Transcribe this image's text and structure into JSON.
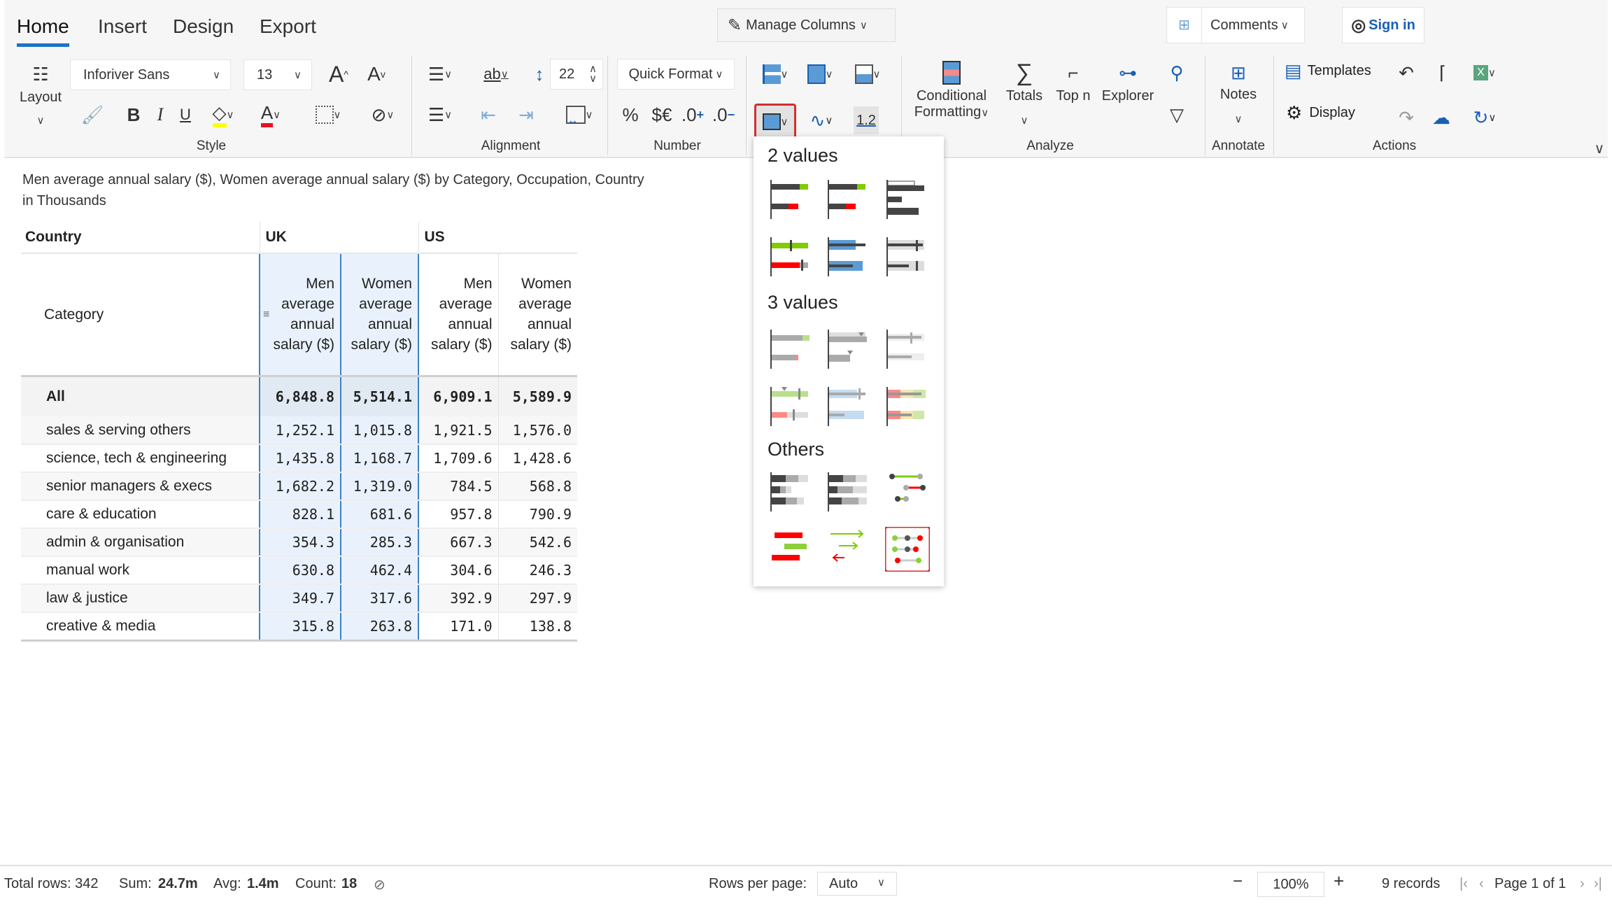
{
  "tabs": [
    {
      "label": "Home",
      "active": true
    },
    {
      "label": "Insert"
    },
    {
      "label": "Design"
    },
    {
      "label": "Export"
    }
  ],
  "header": {
    "manage_columns": "Manage Columns",
    "comments": "Comments",
    "sign_in": "Sign in"
  },
  "ribbon": {
    "layout_label": "Layout",
    "font_family": "Inforiver Sans",
    "font_size": "13",
    "row_height": "22",
    "quick_format": "Quick Format",
    "number_buttons": [
      "%",
      "$€",
      ".0",
      ".0"
    ],
    "decimals_label": "1.2",
    "conditional": "Conditional",
    "formatting": "Formatting",
    "totals": "Totals",
    "top_n": "Top n",
    "explorer": "Explorer",
    "notes": "Notes",
    "templates": "Templates",
    "display": "Display",
    "groups": {
      "style": "Style",
      "alignment": "Alignment",
      "number": "Number",
      "analyze": "Analyze",
      "annotate": "Annotate",
      "actions": "Actions"
    },
    "colors": {
      "accent": "#1a73c9",
      "highlight_yellow": "#ffff00",
      "font_red": "#e81123",
      "selected_outline": "#d32f2f"
    }
  },
  "title": {
    "line1": "Men average annual salary ($), Women average annual salary ($) by Category, Occupation, Country",
    "line2": "in Thousands"
  },
  "table": {
    "country_label": "Country",
    "category_label": "Category",
    "countries": [
      "UK",
      "US"
    ],
    "measures": [
      "Men average annual salary ($)",
      "Women average annual salary ($)",
      "Men average annual salary ($)",
      "Women average annual salary ($)"
    ],
    "total": {
      "label": "All",
      "values": [
        "6,848.8",
        "5,514.1",
        "6,909.1",
        "5,589.9"
      ]
    },
    "rows": [
      {
        "label": "sales & serving others",
        "values": [
          "1,252.1",
          "1,015.8",
          "1,921.5",
          "1,576.0"
        ]
      },
      {
        "label": "science, tech & engineering",
        "values": [
          "1,435.8",
          "1,168.7",
          "1,709.6",
          "1,428.6"
        ]
      },
      {
        "label": "senior managers & execs",
        "values": [
          "1,682.2",
          "1,319.0",
          "784.5",
          "568.8"
        ]
      },
      {
        "label": "care & education",
        "values": [
          "828.1",
          "681.6",
          "957.8",
          "790.9"
        ]
      },
      {
        "label": "admin & organisation",
        "values": [
          "354.3",
          "285.3",
          "667.3",
          "542.6"
        ]
      },
      {
        "label": "manual work",
        "values": [
          "630.8",
          "462.4",
          "304.6",
          "246.3"
        ]
      },
      {
        "label": "law & justice",
        "values": [
          "349.7",
          "317.6",
          "392.9",
          "297.9"
        ]
      },
      {
        "label": "creative & media",
        "values": [
          "315.8",
          "263.8",
          "171.0",
          "138.8"
        ]
      }
    ]
  },
  "dropdown": {
    "sections": [
      "2 values",
      "3 values",
      "Others"
    ],
    "selected": "dumbbell-variance"
  },
  "status": {
    "total_rows": "Total rows: 342",
    "sum_label": "Sum:",
    "sum": "24.7m",
    "avg_label": "Avg:",
    "avg": "1.4m",
    "count_label": "Count:",
    "count": "18",
    "rows_per_page_label": "Rows per page:",
    "rows_per_page": "Auto",
    "zoom": "100%",
    "records": "9 records",
    "page": "Page 1 of 1"
  }
}
